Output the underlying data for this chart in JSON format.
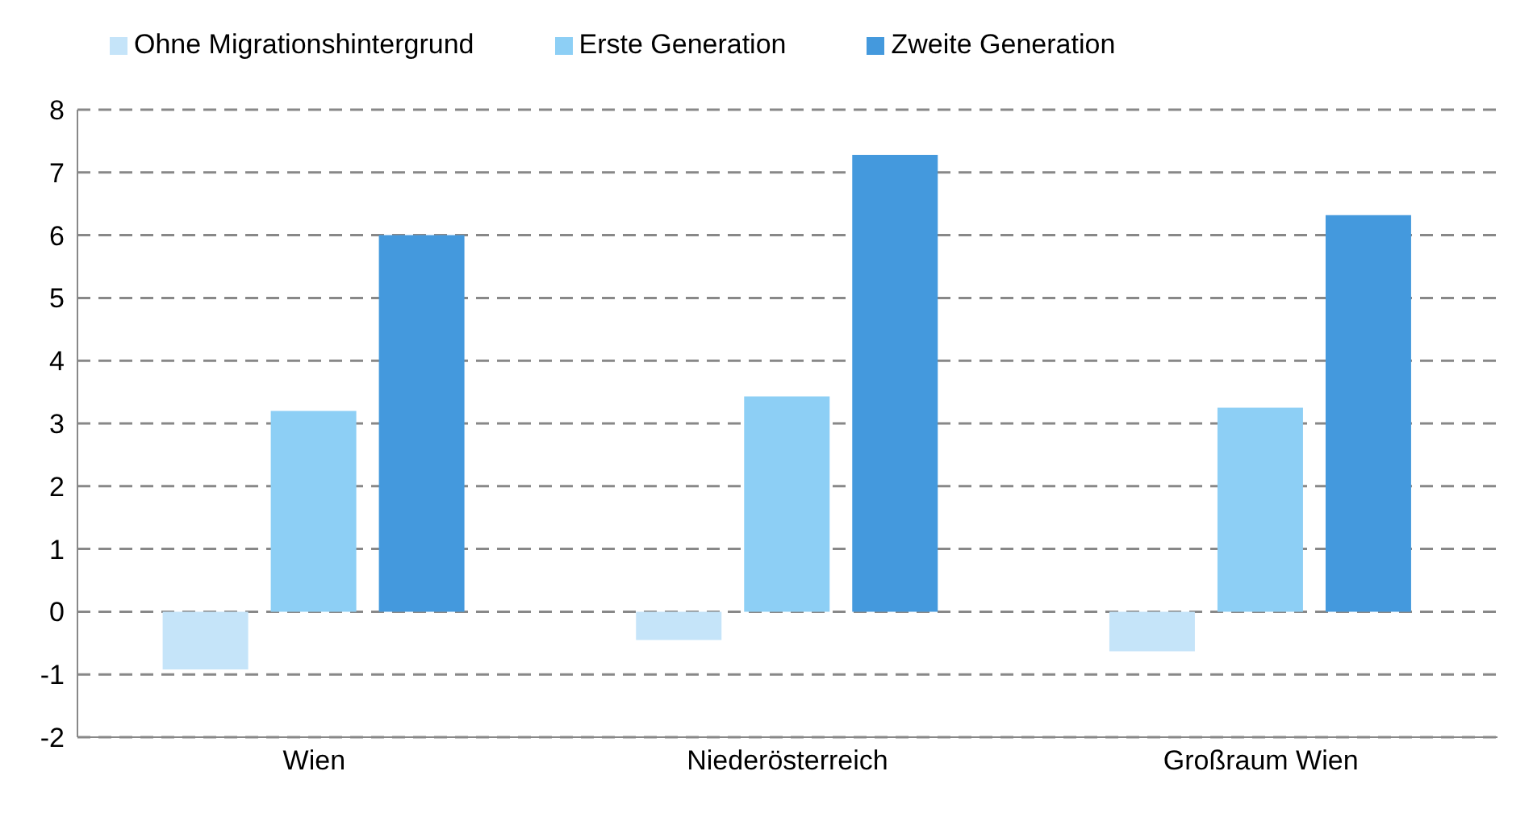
{
  "chart_data": {
    "type": "bar",
    "categories": [
      "Wien",
      "Niederösterreich",
      "Großraum Wien"
    ],
    "series": [
      {
        "name": "Ohne Migrationshintergrund",
        "color": "#c5e4f9",
        "values": [
          -0.92,
          -0.45,
          -0.63
        ]
      },
      {
        "name": "Erste Generation",
        "color": "#8dcff5",
        "values": [
          3.2,
          3.43,
          3.25
        ]
      },
      {
        "name": "Zweite Generation",
        "color": "#4499dd",
        "values": [
          6.0,
          7.28,
          6.32
        ]
      }
    ],
    "ylim": [
      -2,
      8
    ],
    "yticks": [
      -2,
      -1,
      0,
      1,
      2,
      3,
      4,
      5,
      6,
      7,
      8
    ],
    "grid": "y",
    "legend": "top left"
  }
}
